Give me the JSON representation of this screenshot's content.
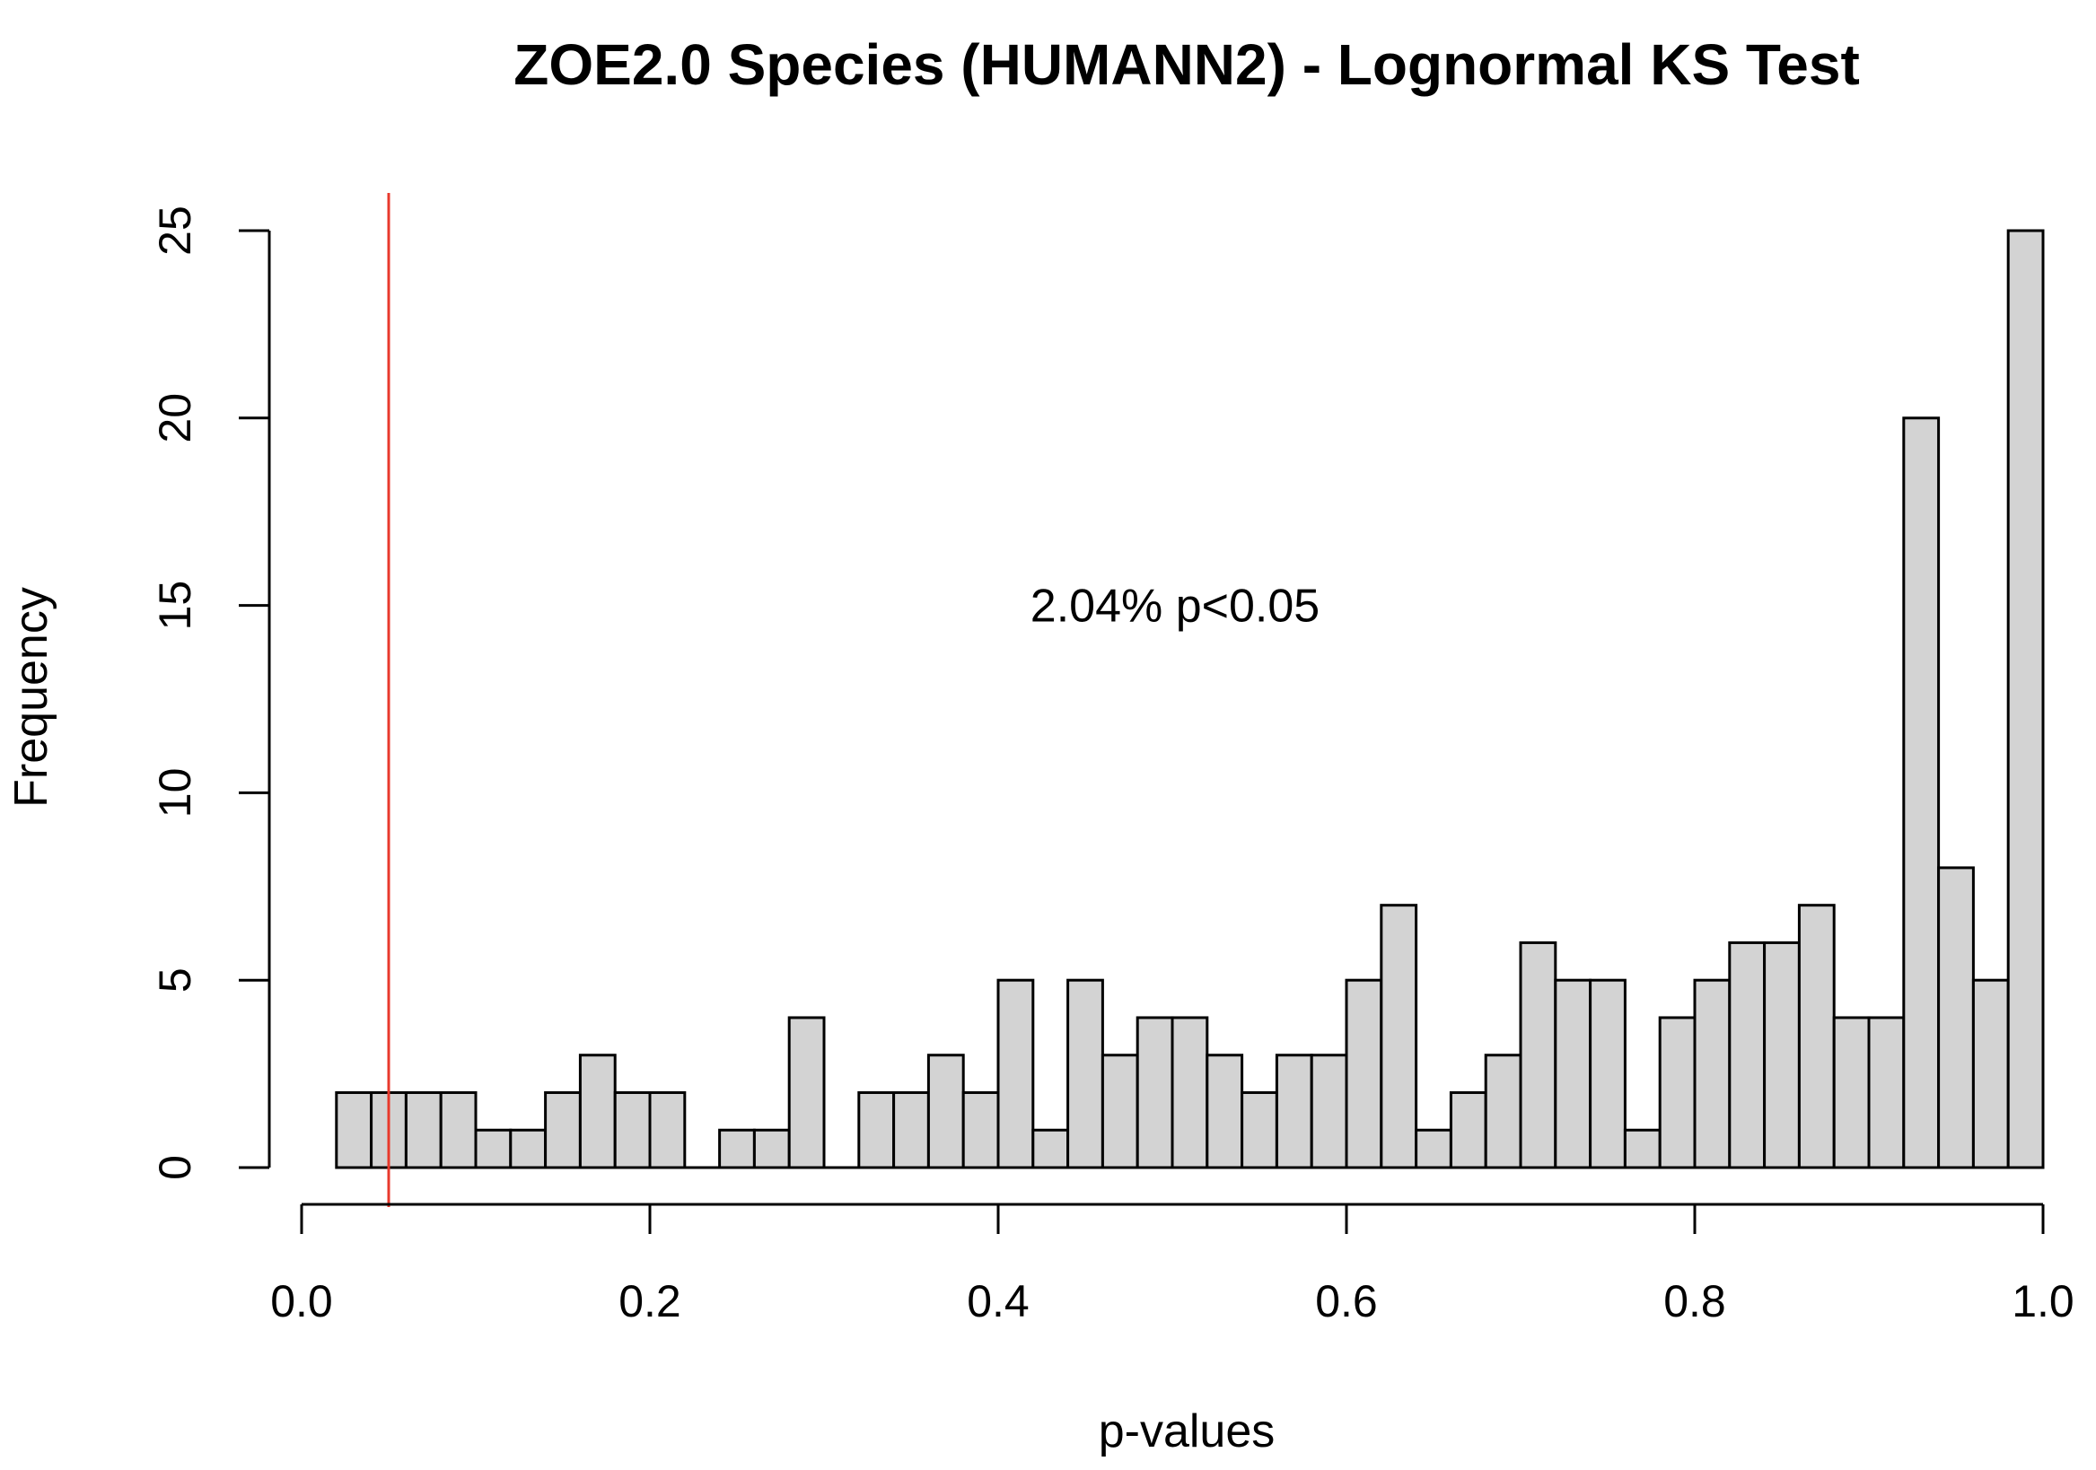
{
  "chart_data": {
    "type": "bar",
    "title": "ZOE2.0 Species (HUMANN2) - Lognormal KS Test",
    "xlabel": "p-values",
    "ylabel": "Frequency",
    "xlim": [
      0,
      1
    ],
    "ylim": [
      0,
      25
    ],
    "xticks": [
      "0.0",
      "0.2",
      "0.4",
      "0.6",
      "0.8",
      "1.0"
    ],
    "yticks": [
      "0",
      "5",
      "10",
      "15",
      "20",
      "25"
    ],
    "bin_width": 0.02,
    "bin_starts": [
      0.02,
      0.04,
      0.06,
      0.08,
      0.1,
      0.12,
      0.14,
      0.16,
      0.18,
      0.2,
      0.22,
      0.24,
      0.26,
      0.28,
      0.3,
      0.32,
      0.34,
      0.36,
      0.38,
      0.4,
      0.42,
      0.44,
      0.46,
      0.48,
      0.5,
      0.52,
      0.54,
      0.56,
      0.58,
      0.6,
      0.62,
      0.64,
      0.66,
      0.68,
      0.7,
      0.72,
      0.74,
      0.76,
      0.78,
      0.8,
      0.82,
      0.84,
      0.86,
      0.88,
      0.9,
      0.92,
      0.94,
      0.96,
      0.98
    ],
    "values": [
      2,
      2,
      2,
      2,
      1,
      1,
      2,
      3,
      2,
      2,
      0,
      1,
      1,
      4,
      0,
      2,
      2,
      3,
      2,
      5,
      1,
      5,
      3,
      4,
      4,
      3,
      2,
      3,
      3,
      5,
      7,
      1,
      2,
      3,
      6,
      5,
      5,
      1,
      4,
      5,
      6,
      6,
      7,
      4,
      4,
      20,
      8,
      5,
      25
    ],
    "reference_line": {
      "x": 0.05,
      "color": "#e8392c"
    },
    "annotation": {
      "text": "2.04% p<0.05",
      "x": 0.5,
      "y": 15
    }
  }
}
